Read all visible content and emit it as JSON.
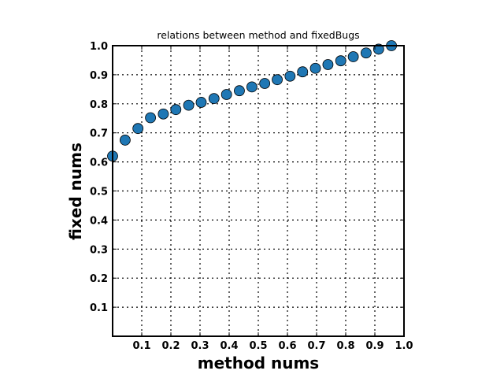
{
  "chart_data": {
    "type": "scatter",
    "title": "relations between method and fixedBugs",
    "xlabel": "method nums",
    "ylabel": "fixed nums",
    "xlim": [
      0.0,
      1.0
    ],
    "ylim": [
      0.0,
      1.0
    ],
    "xticks": [
      "0.1",
      "0.2",
      "0.3",
      "0.4",
      "0.5",
      "0.6",
      "0.7",
      "0.8",
      "0.9",
      "1.0"
    ],
    "yticks": [
      "0.1",
      "0.2",
      "0.3",
      "0.4",
      "0.5",
      "0.6",
      "0.7",
      "0.8",
      "0.9",
      "1.0"
    ],
    "grid": true,
    "grid_style": "dotted",
    "marker_color": "#1f77b4",
    "points": [
      {
        "x": 0.0,
        "y": 0.62
      },
      {
        "x": 0.043,
        "y": 0.675
      },
      {
        "x": 0.087,
        "y": 0.715
      },
      {
        "x": 0.13,
        "y": 0.752
      },
      {
        "x": 0.174,
        "y": 0.765
      },
      {
        "x": 0.217,
        "y": 0.78
      },
      {
        "x": 0.261,
        "y": 0.795
      },
      {
        "x": 0.304,
        "y": 0.805
      },
      {
        "x": 0.348,
        "y": 0.818
      },
      {
        "x": 0.391,
        "y": 0.832
      },
      {
        "x": 0.435,
        "y": 0.845
      },
      {
        "x": 0.478,
        "y": 0.858
      },
      {
        "x": 0.522,
        "y": 0.87
      },
      {
        "x": 0.565,
        "y": 0.883
      },
      {
        "x": 0.609,
        "y": 0.895
      },
      {
        "x": 0.652,
        "y": 0.91
      },
      {
        "x": 0.696,
        "y": 0.922
      },
      {
        "x": 0.739,
        "y": 0.935
      },
      {
        "x": 0.783,
        "y": 0.948
      },
      {
        "x": 0.826,
        "y": 0.962
      },
      {
        "x": 0.87,
        "y": 0.975
      },
      {
        "x": 0.913,
        "y": 0.988
      },
      {
        "x": 0.957,
        "y": 1.0
      }
    ]
  }
}
